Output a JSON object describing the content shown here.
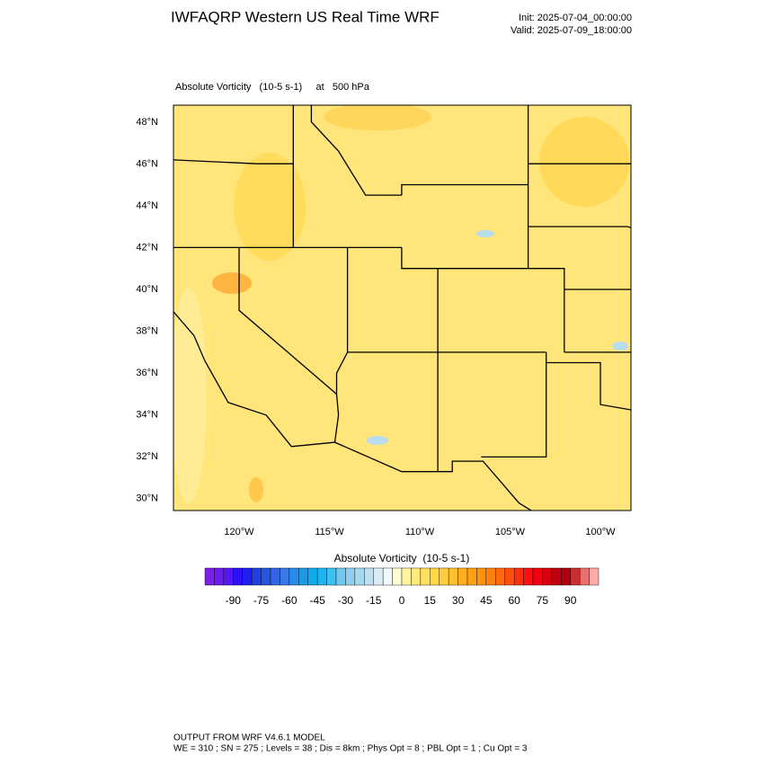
{
  "header": {
    "title": "IWFAQRP Western US Real Time WRF",
    "init": "Init: 2025-07-04_00:00:00",
    "valid": "Valid: 2025-07-09_18:00:00"
  },
  "map": {
    "subtitle": "Absolute Vorticity   (10-5 s-1)     at   500 hPa",
    "lat_labels": [
      "48°N",
      "46°N",
      "44°N",
      "42°N",
      "40°N",
      "38°N",
      "36°N",
      "34°N",
      "32°N",
      "30°N"
    ],
    "lon_labels": [
      "120°W",
      "115°W",
      "110°W",
      "105°W",
      "100°W"
    ]
  },
  "colorbar": {
    "title": "Absolute Vorticity  (10-5 s-1)",
    "lim": [
      -105,
      105
    ],
    "ticks": [
      -90,
      -75,
      -60,
      -45,
      -30,
      -15,
      0,
      15,
      30,
      45,
      60,
      75,
      90
    ],
    "colors": [
      "#7b20e6",
      "#6a1ff0",
      "#5518f5",
      "#2e10f5",
      "#1f1ff0",
      "#2040e0",
      "#2855e0",
      "#3365e0",
      "#3a78e8",
      "#2a8ae8",
      "#1a9ae8",
      "#10aaea",
      "#20b4ee",
      "#40c0ee",
      "#70c8ee",
      "#90d0ee",
      "#a8d8ee",
      "#c0e0f0",
      "#d8ecf4",
      "#f0f8fc",
      "#ffffd0",
      "#fff4a0",
      "#ffea80",
      "#ffe060",
      "#ffd848",
      "#ffcc40",
      "#ffc030",
      "#ffb020",
      "#ffa010",
      "#ff9010",
      "#ff8010",
      "#ff6a10",
      "#ff5010",
      "#ff3010",
      "#ff1010",
      "#f00010",
      "#d80010",
      "#c00010",
      "#b00010",
      "#c83030",
      "#e87070",
      "#ffaaaa"
    ]
  },
  "footer": {
    "line1": "OUTPUT FROM WRF V4.6.1 MODEL",
    "line2": "WE = 310 ; SN = 275 ; Levels = 38 ; Dis = 8km ; Phys Opt = 8 ; PBL Opt = 1 ; Cu Opt = 3"
  }
}
